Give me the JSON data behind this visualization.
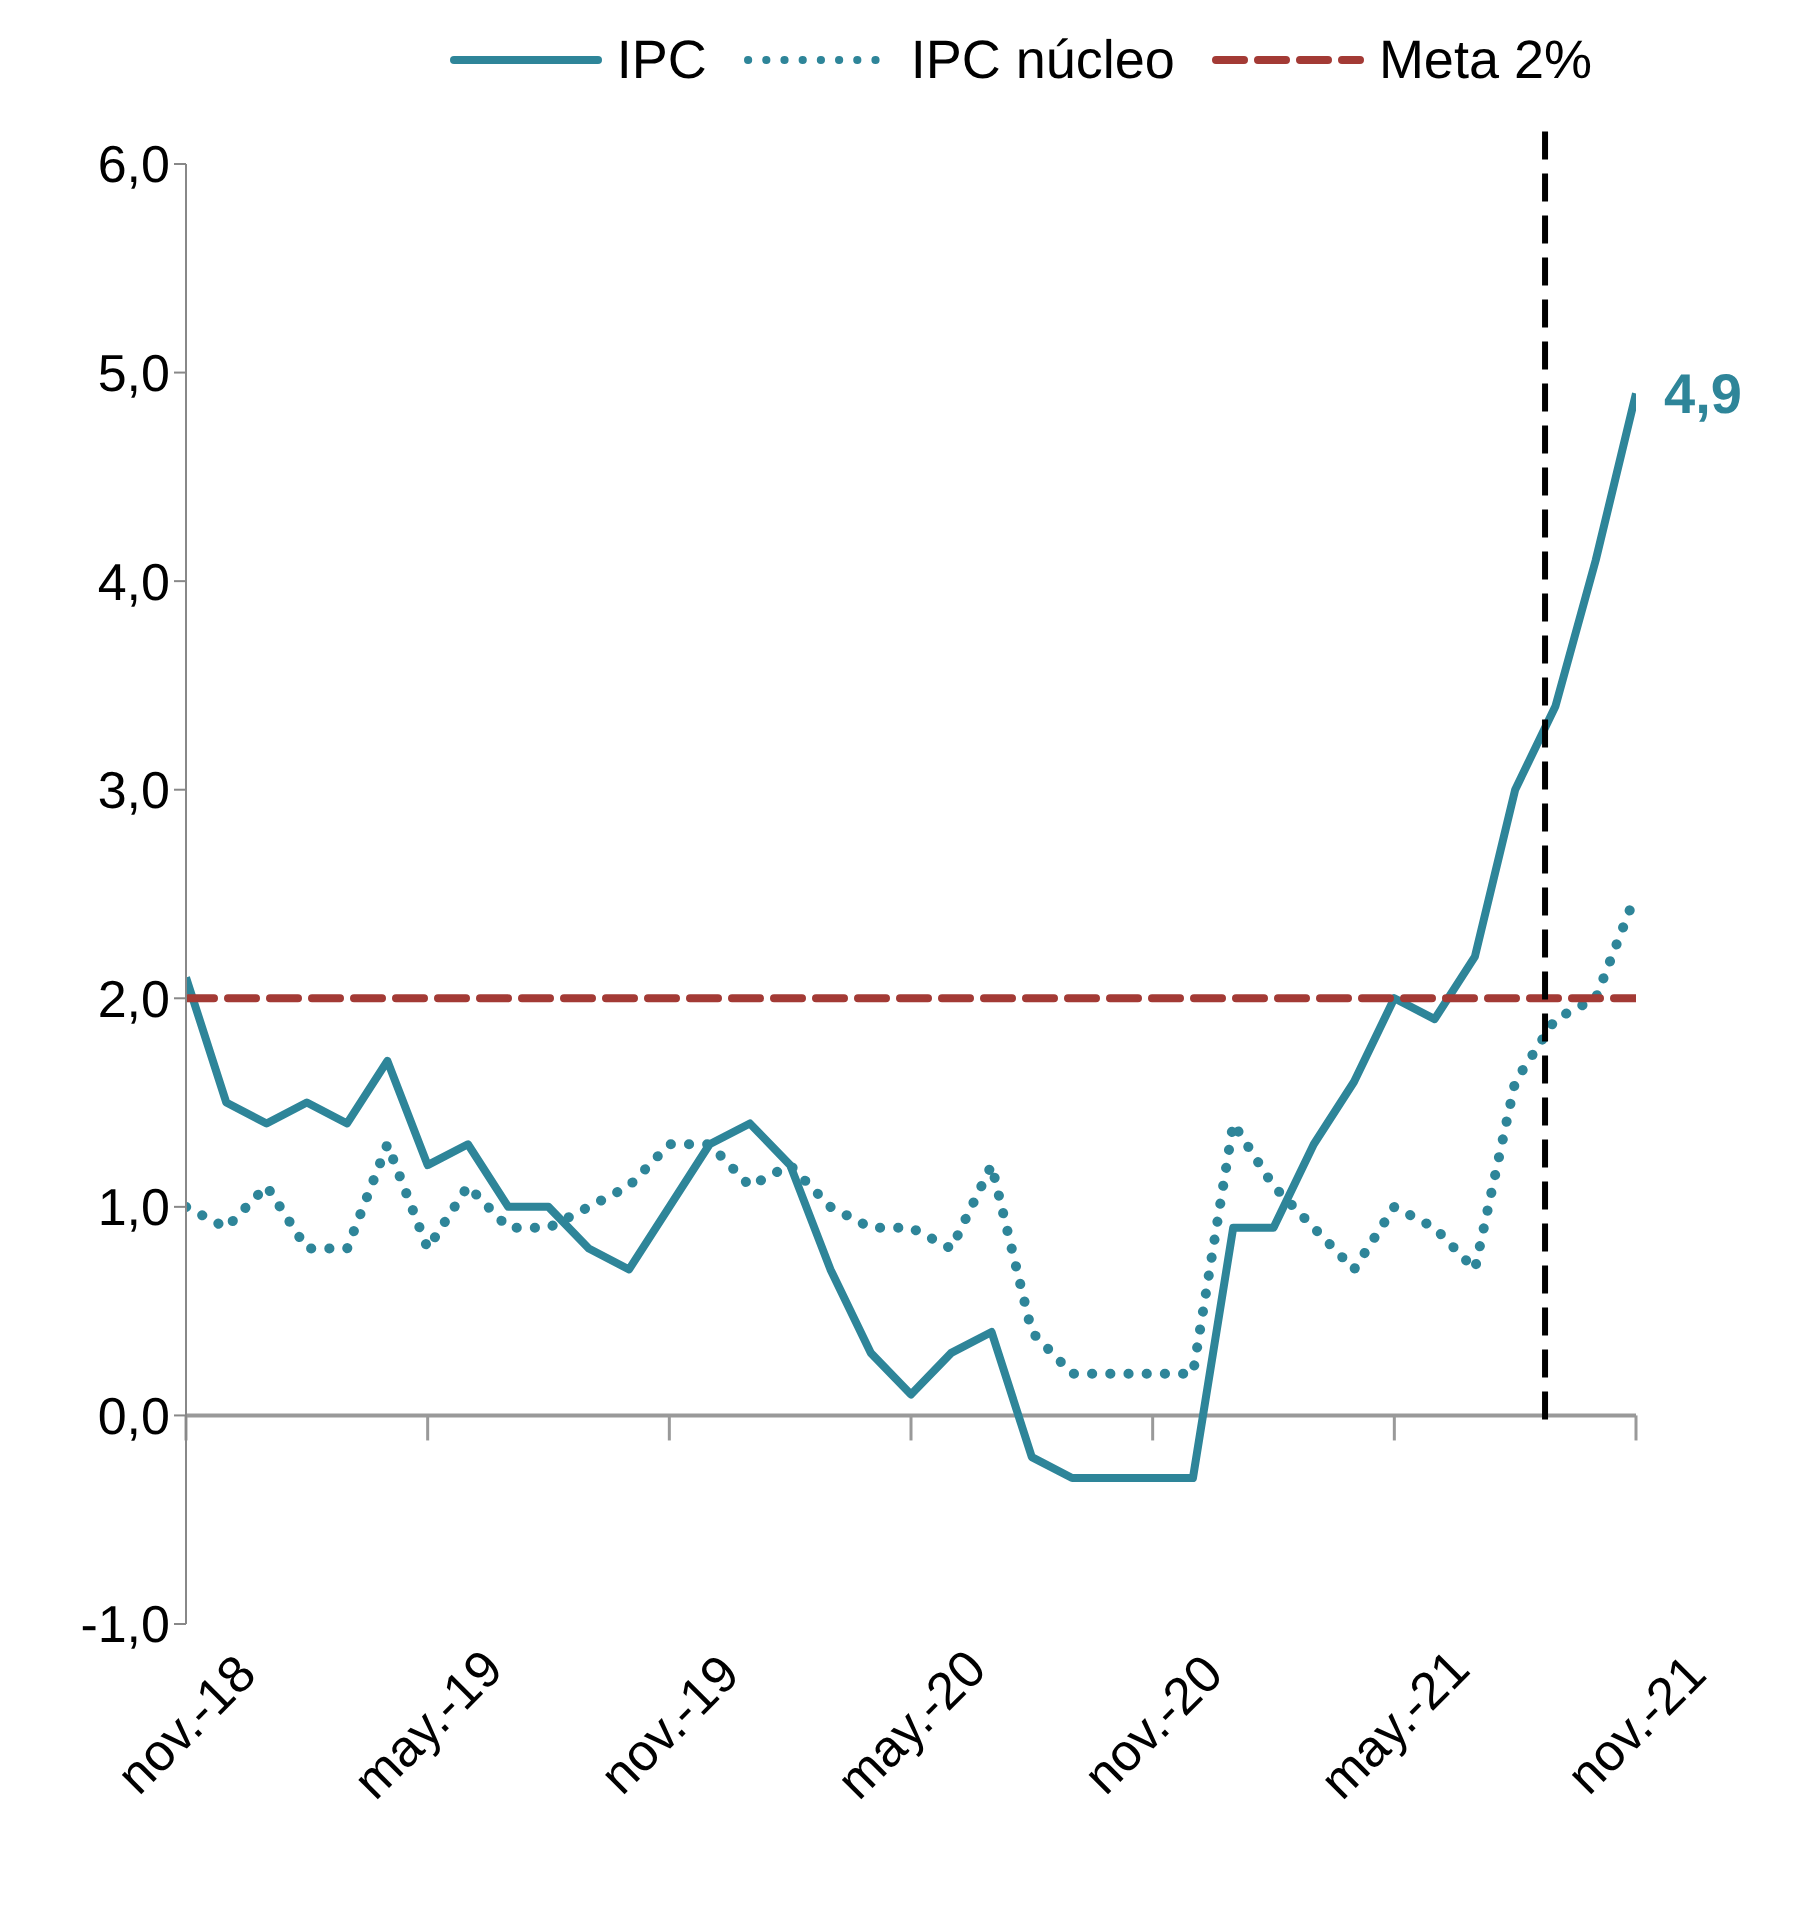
{
  "chart_data": {
    "type": "line",
    "x": [
      "2018-11",
      "2018-12",
      "2019-01",
      "2019-02",
      "2019-03",
      "2019-04",
      "2019-05",
      "2019-06",
      "2019-07",
      "2019-08",
      "2019-09",
      "2019-10",
      "2019-11",
      "2019-12",
      "2020-01",
      "2020-02",
      "2020-03",
      "2020-04",
      "2020-05",
      "2020-06",
      "2020-07",
      "2020-08",
      "2020-09",
      "2020-10",
      "2020-11",
      "2020-12",
      "2021-01",
      "2021-02",
      "2021-03",
      "2021-04",
      "2021-05",
      "2021-06",
      "2021-07",
      "2021-08",
      "2021-09",
      "2021-10",
      "2021-11"
    ],
    "series": [
      {
        "name": "IPC",
        "color": "#2e8599",
        "line_style": "solid",
        "values": [
          2.1,
          1.5,
          1.4,
          1.5,
          1.4,
          1.7,
          1.2,
          1.3,
          1.0,
          1.0,
          0.8,
          0.7,
          1.0,
          1.3,
          1.4,
          1.2,
          0.7,
          0.3,
          0.1,
          0.3,
          0.4,
          -0.2,
          -0.3,
          -0.3,
          -0.3,
          -0.3,
          0.9,
          0.9,
          1.3,
          1.6,
          2.0,
          1.9,
          2.2,
          3.0,
          3.4,
          4.1,
          4.9
        ]
      },
      {
        "name": "IPC núcleo",
        "color": "#2e8599",
        "line_style": "dotted",
        "values": [
          1.0,
          0.9,
          1.1,
          0.8,
          0.8,
          1.3,
          0.8,
          1.1,
          0.9,
          0.9,
          1.0,
          1.1,
          1.3,
          1.3,
          1.1,
          1.2,
          1.0,
          0.9,
          0.9,
          0.8,
          1.2,
          0.4,
          0.2,
          0.2,
          0.2,
          0.2,
          1.4,
          1.1,
          0.9,
          0.7,
          1.0,
          0.9,
          0.7,
          1.6,
          1.9,
          2.0,
          2.5
        ]
      },
      {
        "name": "Meta 2%",
        "color": "#a33a35",
        "line_style": "dashed",
        "values": [
          2,
          2,
          2,
          2,
          2,
          2,
          2,
          2,
          2,
          2,
          2,
          2,
          2,
          2,
          2,
          2,
          2,
          2,
          2,
          2,
          2,
          2,
          2,
          2,
          2,
          2,
          2,
          2,
          2,
          2,
          2,
          2,
          2,
          2,
          2,
          2,
          2
        ]
      }
    ],
    "xlim": [
      "2018-11",
      "2021-11"
    ],
    "xticks": [
      {
        "value": "2018-11",
        "label": "nov.-18"
      },
      {
        "value": "2019-05",
        "label": "may.-19"
      },
      {
        "value": "2019-11",
        "label": "nov.-19"
      },
      {
        "value": "2020-05",
        "label": "may.-20"
      },
      {
        "value": "2020-11",
        "label": "nov.-20"
      },
      {
        "value": "2021-05",
        "label": "may.-21"
      },
      {
        "value": "2021-11",
        "label": "nov.-21"
      }
    ],
    "ylim": [
      -1,
      6
    ],
    "yticks": [
      {
        "value": -1,
        "label": "-1,0"
      },
      {
        "value": 0,
        "label": "0,0"
      },
      {
        "value": 1,
        "label": "1,0"
      },
      {
        "value": 2,
        "label": "2,0"
      },
      {
        "value": 3,
        "label": "3,0"
      },
      {
        "value": 4,
        "label": "4,0"
      },
      {
        "value": 5,
        "label": "5,0"
      },
      {
        "value": 6,
        "label": "6,0"
      }
    ],
    "ref_lines": [
      {
        "axis": "x",
        "value": "2021-08-24",
        "color": "#000000",
        "line_style": "dashed"
      }
    ],
    "annotations": [
      {
        "text": "4,9",
        "x": "2021-11",
        "y": 4.9
      }
    ],
    "marker": "none",
    "legend": "top"
  }
}
